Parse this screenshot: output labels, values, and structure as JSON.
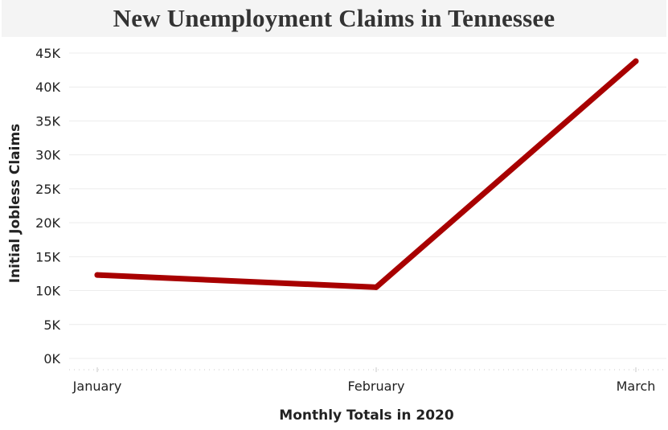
{
  "chart_data": {
    "type": "line",
    "title": "New Unemployment Claims in Tennessee",
    "xlabel": "Monthly Totals in 2020",
    "ylabel": "Initial Jobless Claims",
    "categories": [
      "January",
      "February",
      "March"
    ],
    "series": [
      {
        "values": [
          12300,
          10500,
          43800
        ]
      }
    ],
    "ylim": [
      0,
      45000
    ],
    "yticks": [
      0,
      5000,
      10000,
      15000,
      20000,
      25000,
      30000,
      35000,
      40000,
      45000
    ],
    "ytick_labels": [
      "0K",
      "5K",
      "10K",
      "15K",
      "20K",
      "25K",
      "30K",
      "35K",
      "40K",
      "45K"
    ],
    "grid": true,
    "line_color": "#a80000"
  }
}
